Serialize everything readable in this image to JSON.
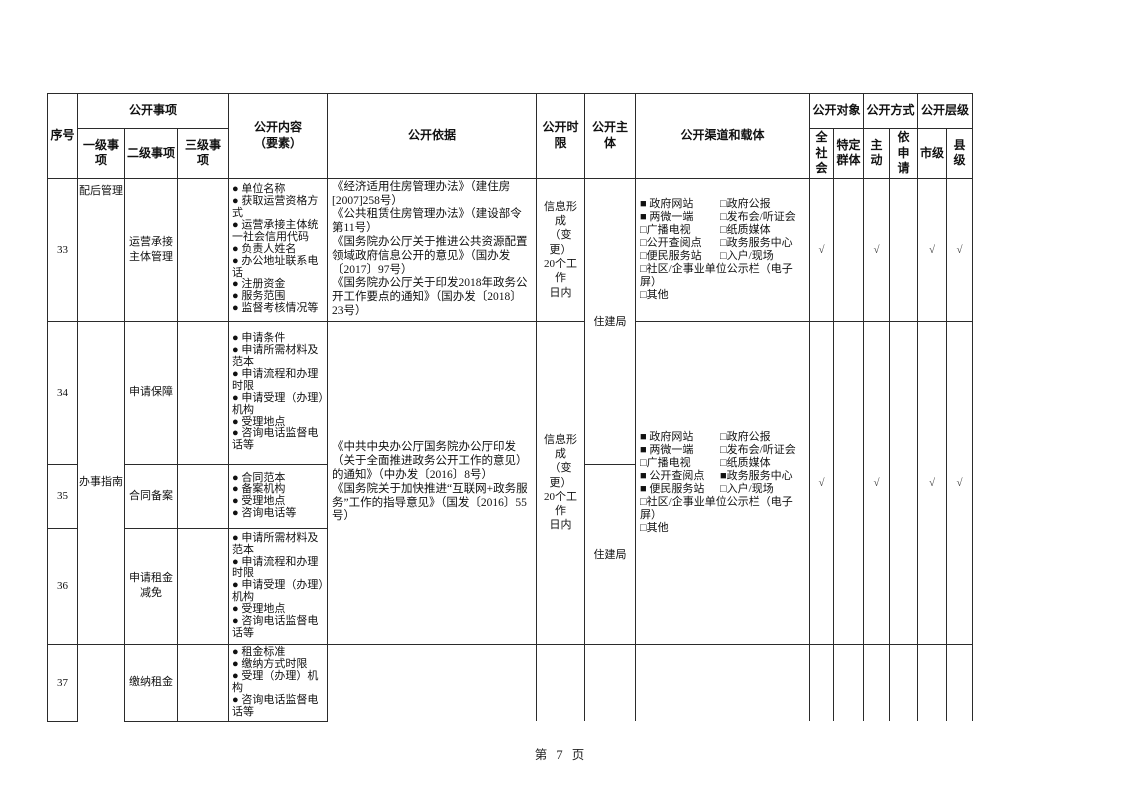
{
  "page": {
    "footer_label": "第 7 页"
  },
  "header": {
    "xuhao": "序号",
    "gongkai_shixiang": "公开事项",
    "yiji": "一级事项",
    "erji": "二级事项",
    "sanji": "三级事项",
    "neirong": "公开内容\n（要素）",
    "yiju": "公开依据",
    "shixian": "公开时限",
    "zhuti": "公开主体",
    "qudao": "公开渠道和载体",
    "duixiang": "公开对象",
    "fangshi": "公开方式",
    "cengji": "公开层级",
    "quanshehui": "全社\n会",
    "teding": "特定\n群体",
    "zhudong": "主动",
    "yishenqing": "依申\n请",
    "shiji": "市级",
    "xianji": "县级"
  },
  "rows": {
    "subjects": {
      "a": "住建局",
      "b": "住建局"
    },
    "r33": {
      "no": "33",
      "level1": "配后管理",
      "level2": "运营承接\n主体管理",
      "level3": "",
      "content": [
        "● 单位名称",
        "● 获取运营资格方式",
        "● 运营承接主体统一社会信用代码",
        "● 负责人姓名",
        "● 办公地址联系电话",
        "● 注册资金",
        "● 服务范围",
        "● 监督考核情况等"
      ],
      "basis": [
        "《经济适用住房管理办法》（建住房[2007]258号）",
        "《公共租赁住房管理办法》（建设部令第11号）",
        "《国务院办公厅关于推进公共资源配置领域政府信息公开的意见》（国办发〔2017〕97号）",
        "《国务院办公厅关于印发2018年政务公开工作要点的通知》（国办发〔2018〕23号）"
      ],
      "time_limit": "信息形成\n（变更）\n20个工作\n日内",
      "channels": [
        [
          "■ 政府网站",
          "□政府公报"
        ],
        [
          "■ 两微一端",
          "□发布会/听证会"
        ],
        [
          "□广播电视",
          "□纸质媒体"
        ],
        [
          "□公开查阅点",
          "□政务服务中心"
        ],
        [
          "□便民服务站",
          "□入户/现场"
        ],
        [
          "□社区/企事业单位公示栏（电子屏）"
        ],
        [
          "□其他"
        ]
      ],
      "checks": {
        "all": "√",
        "specific": "",
        "active": "√",
        "request": "",
        "city": "√",
        "county": "√"
      }
    },
    "r34_36": {
      "level1": "办事指南",
      "basis": [
        "《中共中央办公厅国务院办公厅印发（关于全面推进政务公开工作的意见）的通知》（中办发〔2016〕8号）",
        "《国务院关于加快推进“互联网+政务服务”工作的指导意见》（国发〔2016〕55号）"
      ],
      "time_limit": "信息形成\n（变更）\n20个工作\n日内",
      "channels": [
        [
          "■ 政府网站",
          "□政府公报"
        ],
        [
          "■ 两微一端",
          "□发布会/听证会"
        ],
        [
          "□广播电视",
          "□纸质媒体"
        ],
        [
          "■ 公开查阅点",
          "■政务服务中心"
        ],
        [
          "■ 便民服务站",
          "□入户/现场"
        ],
        [
          "□社区/企事业单位公示栏（电子屏）"
        ],
        [
          "□其他"
        ]
      ],
      "checks": {
        "all": "√",
        "specific": "",
        "active": "√",
        "request": "",
        "city": "√",
        "county": "√"
      }
    },
    "r34": {
      "no": "34",
      "level2": "申请保障",
      "level3": "",
      "content": [
        "● 申请条件",
        "● 申请所需材料及范本",
        "● 申请流程和办理时限",
        "● 申请受理（办理）机构",
        "● 受理地点",
        "● 咨询电话监督电话等"
      ]
    },
    "r35": {
      "no": "35",
      "level2": "合同备案",
      "level3": "",
      "content": [
        "● 合同范本",
        "● 备案机构",
        "● 受理地点",
        "● 咨询电话等"
      ]
    },
    "r36": {
      "no": "36",
      "level2": "申请租金\n减免",
      "level3": "",
      "content": [
        "● 申请所需材料及范本",
        "● 申请流程和办理时限",
        "● 申请受理（办理）机构",
        "● 受理地点",
        "● 咨询电话监督电话等"
      ]
    },
    "r37": {
      "no": "37",
      "level1": "",
      "level2": "缴纳租金",
      "level3": "",
      "content": [
        "● 租金标准",
        "● 缴纳方式时限",
        "● 受理（办理）机构",
        "● 咨询电话监督电话等"
      ],
      "basis_empty": "",
      "time_limit_empty": "",
      "subject_empty": "",
      "channels_empty": "",
      "checks": {
        "all": "",
        "specific": "",
        "active": "",
        "request": "",
        "city": "",
        "county": ""
      }
    }
  }
}
